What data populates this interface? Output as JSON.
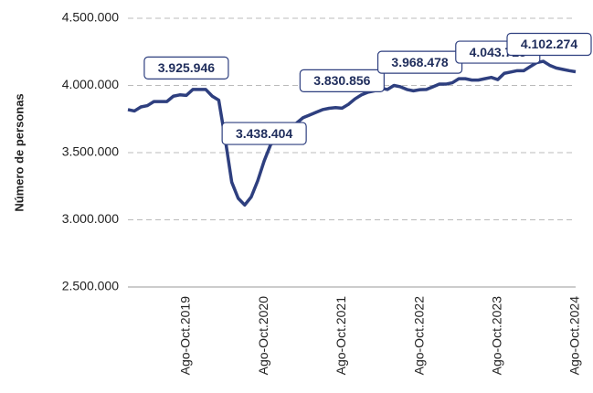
{
  "chart_data": {
    "type": "line",
    "y_label": "Número de personas",
    "categories": [
      null,
      null,
      null,
      null,
      null,
      null,
      null,
      null,
      null,
      "Ago-Oct.2019",
      null,
      null,
      null,
      null,
      null,
      null,
      null,
      null,
      null,
      null,
      null,
      "Ago-Oct.2020",
      null,
      null,
      null,
      null,
      null,
      null,
      null,
      null,
      null,
      null,
      null,
      "Ago-Oct.2021",
      null,
      null,
      null,
      null,
      null,
      null,
      null,
      null,
      null,
      null,
      null,
      "Ago-Oct.2022",
      null,
      null,
      null,
      null,
      null,
      null,
      null,
      null,
      null,
      null,
      null,
      "Ago-Oct.2023",
      null,
      null,
      null,
      null,
      null,
      null,
      null,
      null,
      null,
      null,
      null,
      "Ago-Oct.2024"
    ],
    "series": [
      {
        "name": null,
        "color": "#2e3f7f",
        "values": [
          3820000,
          3810000,
          3840000,
          3850000,
          3880000,
          3880000,
          3880000,
          3920000,
          3930000,
          3925946,
          3970000,
          3970000,
          3970000,
          3920000,
          3890000,
          3600000,
          3280000,
          3160000,
          3110000,
          3170000,
          3290000,
          3438404,
          3560000,
          3600000,
          3620000,
          3660000,
          3720000,
          3760000,
          3780000,
          3800000,
          3820000,
          3830000,
          3835000,
          3830856,
          3860000,
          3900000,
          3930000,
          3950000,
          3960000,
          3980000,
          3970000,
          4000000,
          3990000,
          3970000,
          3960000,
          3968478,
          3970000,
          3990000,
          4010000,
          4010000,
          4020000,
          4050000,
          4050000,
          4040000,
          4040000,
          4050000,
          4060000,
          4043725,
          4090000,
          4100000,
          4110000,
          4110000,
          4140000,
          4170000,
          4180000,
          4150000,
          4130000,
          4120000,
          4110000,
          4102274
        ],
        "value_labels": [
          null,
          null,
          null,
          null,
          null,
          null,
          null,
          null,
          null,
          "3.925.946",
          null,
          null,
          null,
          null,
          null,
          null,
          null,
          null,
          null,
          null,
          null,
          "3.438.404",
          null,
          null,
          null,
          null,
          null,
          null,
          null,
          null,
          null,
          null,
          null,
          "3.830.856",
          null,
          null,
          null,
          null,
          null,
          null,
          null,
          null,
          null,
          null,
          null,
          "3.968.478",
          null,
          null,
          null,
          null,
          null,
          null,
          null,
          null,
          null,
          null,
          null,
          "4.043.725",
          null,
          null,
          null,
          null,
          null,
          null,
          null,
          null,
          null,
          null,
          null,
          "4.102.274"
        ]
      }
    ],
    "ylim": [
      2500000,
      4500000
    ],
    "yticks": [
      {
        "value": 2500000,
        "label": "2.500.000"
      },
      {
        "value": 3000000,
        "label": "3.000.000"
      },
      {
        "value": 3500000,
        "label": "3.500.000"
      },
      {
        "value": 4000000,
        "label": "4.000.000"
      },
      {
        "value": 4500000,
        "label": "4.500.000"
      }
    ],
    "grid": true
  }
}
